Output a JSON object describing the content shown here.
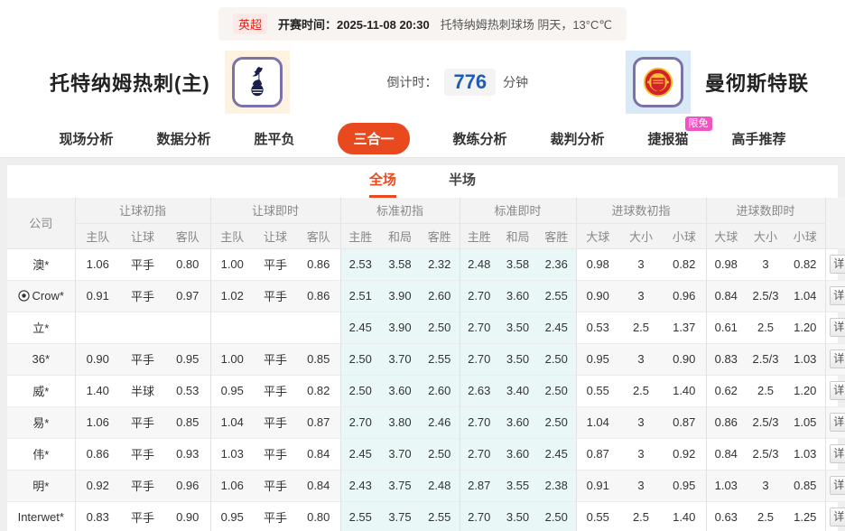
{
  "match_bar": {
    "league": "英超",
    "kickoff_label": "开赛时间：",
    "kickoff_time": "2025-11-08 20:30",
    "venue_weather": "托特纳姆热刺球场  阴天，13°C℃"
  },
  "teams": {
    "home_name": "托特纳姆热刺(主)",
    "away_name": "曼彻斯特联"
  },
  "countdown": {
    "label": "倒计时：",
    "value": "776",
    "unit": "分钟"
  },
  "nav": {
    "items": [
      {
        "id": "live-analysis",
        "label": "现场分析",
        "active": false
      },
      {
        "id": "data-analysis",
        "label": "数据分析",
        "active": false
      },
      {
        "id": "win-draw-lose",
        "label": "胜平负",
        "active": false
      },
      {
        "id": "three-in-one",
        "label": "三合一",
        "active": true
      },
      {
        "id": "coach-analysis",
        "label": "教练分析",
        "active": false
      },
      {
        "id": "referee-analysis",
        "label": "裁判分析",
        "active": false
      },
      {
        "id": "jiebao-cat",
        "label": "捷报猫",
        "active": false,
        "badge": "限免"
      },
      {
        "id": "expert-picks",
        "label": "高手推荐",
        "active": false
      }
    ]
  },
  "scope_tabs": [
    {
      "id": "full-match",
      "label": "全场",
      "active": true
    },
    {
      "id": "half-match",
      "label": "半场",
      "active": false
    }
  ],
  "table": {
    "company_header": "公司",
    "groups": [
      "让球初指",
      "让球即时",
      "标准初指",
      "标准即时",
      "进球数初指",
      "进球数即时"
    ],
    "sub_headers": [
      [
        "主队",
        "让球",
        "客队"
      ],
      [
        "主队",
        "让球",
        "客队"
      ],
      [
        "主胜",
        "和局",
        "客胜"
      ],
      [
        "主胜",
        "和局",
        "客胜"
      ],
      [
        "大球",
        "大小",
        "小球"
      ],
      [
        "大球",
        "大小",
        "小球"
      ]
    ],
    "detail_label": "详",
    "rows": [
      {
        "company": "澳*",
        "has_icon": false,
        "handicap_initial": [
          "1.06",
          "平手",
          "0.80"
        ],
        "handicap_live": [
          "1.00",
          "平手",
          "0.86"
        ],
        "standard_initial": [
          "2.53",
          "3.58",
          "2.32"
        ],
        "standard_live": [
          "2.48",
          "3.58",
          "2.36"
        ],
        "goals_initial": [
          "0.98",
          "3",
          "0.82"
        ],
        "goals_live": [
          "0.98",
          "3",
          "0.82"
        ]
      },
      {
        "company": "Crow*",
        "has_icon": true,
        "handicap_initial": [
          "0.91",
          "平手",
          "0.97"
        ],
        "handicap_live": [
          "1.02",
          "平手",
          "0.86"
        ],
        "standard_initial": [
          "2.51",
          "3.90",
          "2.60"
        ],
        "standard_live": [
          "2.70",
          "3.60",
          "2.55"
        ],
        "goals_initial": [
          "0.90",
          "3",
          "0.96"
        ],
        "goals_live": [
          "0.84",
          "2.5/3",
          "1.04"
        ]
      },
      {
        "company": "立*",
        "has_icon": false,
        "handicap_initial": [
          "",
          "",
          ""
        ],
        "handicap_live": [
          "",
          "",
          ""
        ],
        "standard_initial": [
          "2.45",
          "3.90",
          "2.50"
        ],
        "standard_live": [
          "2.70",
          "3.50",
          "2.45"
        ],
        "goals_initial": [
          "0.53",
          "2.5",
          "1.37"
        ],
        "goals_live": [
          "0.61",
          "2.5",
          "1.20"
        ]
      },
      {
        "company": "36*",
        "has_icon": false,
        "handicap_initial": [
          "0.90",
          "平手",
          "0.95"
        ],
        "handicap_live": [
          "1.00",
          "平手",
          "0.85"
        ],
        "standard_initial": [
          "2.50",
          "3.70",
          "2.55"
        ],
        "standard_live": [
          "2.70",
          "3.50",
          "2.50"
        ],
        "goals_initial": [
          "0.95",
          "3",
          "0.90"
        ],
        "goals_live": [
          "0.83",
          "2.5/3",
          "1.03"
        ]
      },
      {
        "company": "威*",
        "has_icon": false,
        "handicap_initial": [
          "1.40",
          "半球",
          "0.53"
        ],
        "handicap_live": [
          "0.95",
          "平手",
          "0.82"
        ],
        "standard_initial": [
          "2.50",
          "3.60",
          "2.60"
        ],
        "standard_live": [
          "2.63",
          "3.40",
          "2.50"
        ],
        "goals_initial": [
          "0.55",
          "2.5",
          "1.40"
        ],
        "goals_live": [
          "0.62",
          "2.5",
          "1.20"
        ]
      },
      {
        "company": "易*",
        "has_icon": false,
        "handicap_initial": [
          "1.06",
          "平手",
          "0.85"
        ],
        "handicap_live": [
          "1.04",
          "平手",
          "0.87"
        ],
        "standard_initial": [
          "2.70",
          "3.80",
          "2.46"
        ],
        "standard_live": [
          "2.70",
          "3.60",
          "2.50"
        ],
        "goals_initial": [
          "1.04",
          "3",
          "0.87"
        ],
        "goals_live": [
          "0.86",
          "2.5/3",
          "1.05"
        ]
      },
      {
        "company": "伟*",
        "has_icon": false,
        "handicap_initial": [
          "0.86",
          "平手",
          "0.93"
        ],
        "handicap_live": [
          "1.03",
          "平手",
          "0.84"
        ],
        "standard_initial": [
          "2.45",
          "3.70",
          "2.50"
        ],
        "standard_live": [
          "2.70",
          "3.60",
          "2.45"
        ],
        "goals_initial": [
          "0.87",
          "3",
          "0.92"
        ],
        "goals_live": [
          "0.84",
          "2.5/3",
          "1.03"
        ]
      },
      {
        "company": "明*",
        "has_icon": false,
        "handicap_initial": [
          "0.92",
          "平手",
          "0.96"
        ],
        "handicap_live": [
          "1.06",
          "平手",
          "0.84"
        ],
        "standard_initial": [
          "2.43",
          "3.75",
          "2.48"
        ],
        "standard_live": [
          "2.87",
          "3.55",
          "2.38"
        ],
        "goals_initial": [
          "0.91",
          "3",
          "0.95"
        ],
        "goals_live": [
          "1.03",
          "3",
          "0.85"
        ]
      },
      {
        "company": "Interwet*",
        "has_icon": false,
        "handicap_initial": [
          "0.83",
          "平手",
          "0.90"
        ],
        "handicap_live": [
          "0.95",
          "平手",
          "0.80"
        ],
        "standard_initial": [
          "2.55",
          "3.75",
          "2.55"
        ],
        "standard_live": [
          "2.70",
          "3.50",
          "2.50"
        ],
        "goals_initial": [
          "0.55",
          "2.5",
          "1.40"
        ],
        "goals_live": [
          "0.63",
          "2.5",
          "1.25"
        ]
      }
    ]
  },
  "colors": {
    "accent_red": "#e1251b",
    "pill_orange": "#e8491f",
    "live_blue": "#2a65c0",
    "standard_col_bg": "#e9f8f6",
    "badge_pink": "#f352c2",
    "countdown_blue": "#1f5cb5"
  }
}
